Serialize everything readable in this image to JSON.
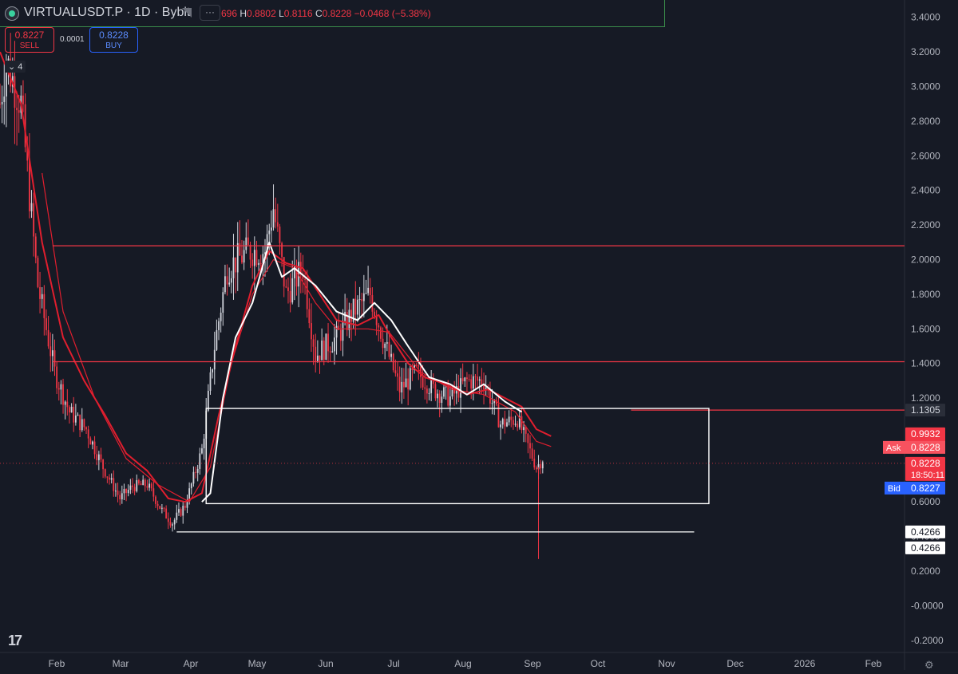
{
  "header": {
    "symbol_line": "VIRTUALUSDT.P · 1D · Bybit",
    "more_label": "···",
    "ohlc": {
      "o": "696",
      "h_label": "H",
      "h": "0.8802",
      "l_label": "L",
      "l": "0.8116",
      "c_label": "C",
      "c": "0.8228",
      "change": "−0.0468 (−5.38%)"
    }
  },
  "trade": {
    "sell_price": "0.8227",
    "sell_label": "SELL",
    "spread": "0.0001",
    "buy_price": "0.8228",
    "buy_label": "BUY",
    "collapse_count": "4"
  },
  "colors": {
    "bg": "#161a25",
    "up": "#d1d4dc",
    "down": "#f23645",
    "ma_red": "#e01e2e",
    "ma_white": "#ffffff",
    "line_red": "#f23645"
  },
  "chart_data": {
    "type": "candlestick",
    "y_ticks": [
      "3.4000",
      "3.2000",
      "3.0000",
      "2.8000",
      "2.6000",
      "2.4000",
      "2.2000",
      "2.0000",
      "1.8000",
      "1.6000",
      "1.4000",
      "1.2000",
      "1.0000",
      "0.8000",
      "0.6000",
      "0.4000",
      "0.2000",
      "-0.0000",
      "-0.2000"
    ],
    "x_ticks": [
      "Feb",
      "Mar",
      "Apr",
      "May",
      "Jun",
      "Jul",
      "Aug",
      "Sep",
      "Oct",
      "Nov",
      "Dec",
      "2026",
      "Feb"
    ],
    "ylim": [
      -0.27,
      3.5
    ],
    "x_range_days": [
      0,
      430
    ],
    "price_anchors": [
      [
        0,
        2.9
      ],
      [
        3,
        3.15
      ],
      [
        10,
        2.9
      ],
      [
        18,
        1.85
      ],
      [
        26,
        1.35
      ],
      [
        33,
        1.12
      ],
      [
        41,
        1.02
      ],
      [
        49,
        0.8
      ],
      [
        57,
        0.62
      ],
      [
        63,
        0.69
      ],
      [
        70,
        0.7
      ],
      [
        77,
        0.55
      ],
      [
        82,
        0.48
      ],
      [
        88,
        0.58
      ],
      [
        96,
        0.9
      ],
      [
        102,
        1.5
      ],
      [
        108,
        1.95
      ],
      [
        118,
        2.05
      ],
      [
        126,
        2.05
      ],
      [
        130,
        2.3
      ],
      [
        136,
        1.8
      ],
      [
        144,
        1.95
      ],
      [
        150,
        1.45
      ],
      [
        160,
        1.55
      ],
      [
        168,
        1.7
      ],
      [
        176,
        1.8
      ],
      [
        182,
        1.55
      ],
      [
        190,
        1.25
      ],
      [
        198,
        1.35
      ],
      [
        206,
        1.25
      ],
      [
        214,
        1.2
      ],
      [
        222,
        1.3
      ],
      [
        230,
        1.3
      ],
      [
        238,
        1.05
      ],
      [
        246,
        1.08
      ],
      [
        255,
        0.8
      ],
      [
        258,
        0.85
      ]
    ],
    "ma_red": [
      [
        0,
        3.2
      ],
      [
        10,
        2.9
      ],
      [
        20,
        2.1
      ],
      [
        30,
        1.55
      ],
      [
        40,
        1.3
      ],
      [
        50,
        1.1
      ],
      [
        60,
        0.88
      ],
      [
        70,
        0.78
      ],
      [
        80,
        0.62
      ],
      [
        88,
        0.6
      ],
      [
        96,
        0.65
      ],
      [
        104,
        1.1
      ],
      [
        112,
        1.5
      ],
      [
        120,
        1.85
      ],
      [
        128,
        2.05
      ],
      [
        136,
        1.98
      ],
      [
        144,
        1.95
      ],
      [
        152,
        1.8
      ],
      [
        160,
        1.65
      ],
      [
        170,
        1.62
      ],
      [
        180,
        1.68
      ],
      [
        186,
        1.55
      ],
      [
        194,
        1.4
      ],
      [
        202,
        1.32
      ],
      [
        212,
        1.28
      ],
      [
        222,
        1.22
      ],
      [
        232,
        1.25
      ],
      [
        240,
        1.2
      ],
      [
        248,
        1.15
      ],
      [
        255,
        1.02
      ],
      [
        262,
        0.98
      ]
    ],
    "ma_red2": [
      [
        20,
        2.5
      ],
      [
        30,
        1.7
      ],
      [
        45,
        1.2
      ],
      [
        60,
        0.85
      ],
      [
        75,
        0.7
      ],
      [
        90,
        0.6
      ],
      [
        100,
        0.8
      ],
      [
        110,
        1.4
      ],
      [
        120,
        1.8
      ],
      [
        130,
        2.0
      ],
      [
        140,
        1.95
      ],
      [
        150,
        1.75
      ],
      [
        160,
        1.6
      ],
      [
        175,
        1.6
      ],
      [
        185,
        1.58
      ],
      [
        200,
        1.35
      ],
      [
        215,
        1.25
      ],
      [
        230,
        1.22
      ],
      [
        245,
        1.12
      ],
      [
        255,
        0.95
      ],
      [
        262,
        0.92
      ]
    ],
    "ma_white": [
      [
        96,
        0.6
      ],
      [
        100,
        0.65
      ],
      [
        106,
        1.2
      ],
      [
        112,
        1.55
      ],
      [
        120,
        1.75
      ],
      [
        128,
        2.1
      ],
      [
        134,
        1.9
      ],
      [
        140,
        1.95
      ],
      [
        150,
        1.85
      ],
      [
        160,
        1.7
      ],
      [
        170,
        1.65
      ],
      [
        178,
        1.75
      ],
      [
        186,
        1.65
      ],
      [
        194,
        1.5
      ],
      [
        204,
        1.32
      ],
      [
        214,
        1.28
      ],
      [
        222,
        1.22
      ],
      [
        230,
        1.28
      ],
      [
        240,
        1.18
      ],
      [
        248,
        1.12
      ]
    ],
    "wick_spikes": [
      {
        "day": 256,
        "low": 0.27
      }
    ],
    "hlines": [
      {
        "price": 2.08,
        "from_day": 25,
        "to_end": true,
        "color": "#f23645"
      },
      {
        "price": 1.41,
        "from_day": 25,
        "to_end": true,
        "color": "#f23645"
      },
      {
        "price": 1.1305,
        "from_day": 300,
        "to_end": true,
        "color": "#f23645"
      },
      {
        "price": 0.4266,
        "from_day": 84,
        "to_day": 330,
        "color": "#ffffff"
      }
    ],
    "rect": {
      "from_day": 98,
      "to_day": 337,
      "top": 1.14,
      "bottom": 0.59,
      "color": "#ffffff"
    },
    "crosshair_price": 0.8228,
    "price_labels": [
      {
        "text": "1.1305",
        "price": 1.1305,
        "bg": "#2a2e39",
        "fg": "#d1d4dc"
      },
      {
        "text": "0.9932",
        "price": 0.9932,
        "bg": "#f23645",
        "fg": "#ffffff"
      },
      {
        "text": "0.9274",
        "price": 0.9274,
        "bg": "#f23645",
        "fg": "#ffffff"
      },
      {
        "text": "0.8228",
        "price": 0.8228,
        "bg": "#f23645",
        "fg": "#ffffff",
        "sub": "18:50:11"
      },
      {
        "text": "0.4266",
        "price": 0.4266,
        "bg": "#ffffff",
        "fg": "#131722"
      },
      {
        "text": "0.4266",
        "price": 0.4266,
        "bg": "#ffffff",
        "fg": "#131722",
        "offset": 20
      }
    ],
    "ask": {
      "label": "Ask",
      "value": "0.8228"
    },
    "bid": {
      "label": "Bid",
      "value": "0.8227"
    }
  }
}
